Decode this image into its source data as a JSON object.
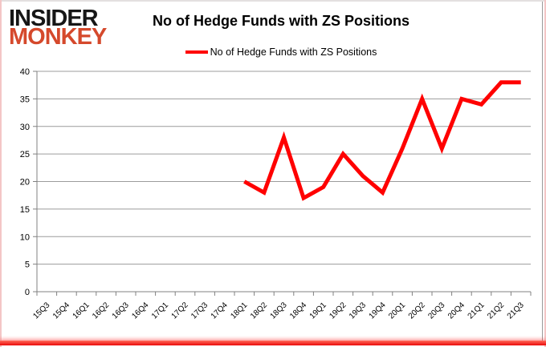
{
  "logo": {
    "line1": "INSIDER",
    "line2": "MONKEY"
  },
  "header": {
    "title": "No of Hedge Funds with ZS Positions"
  },
  "legend": {
    "label": "No of Hedge Funds with ZS Positions",
    "swatch_color": "#ff0000"
  },
  "colors": {
    "line": "#ff0000",
    "grid": "#9c9c9c",
    "axis": "#808080",
    "tick_label": "#000000",
    "logo_black": "#161616",
    "logo_red": "#d5492c",
    "bottom_bar_red": "#ea0b0b",
    "frame_pink": "#f4c6c6"
  },
  "chart_data": {
    "type": "line",
    "title": "No of Hedge Funds with ZS Positions",
    "xlabel": "",
    "ylabel": "",
    "ylim": [
      0,
      40
    ],
    "ytick_step": 5,
    "grid": true,
    "legend_position": "top-center",
    "categories": [
      "15Q3",
      "15Q4",
      "16Q1",
      "16Q2",
      "16Q3",
      "16Q4",
      "17Q1",
      "17Q2",
      "17Q3",
      "17Q4",
      "18Q1",
      "18Q2",
      "18Q3",
      "18Q4",
      "19Q1",
      "19Q2",
      "19Q3",
      "19Q4",
      "20Q1",
      "20Q2",
      "20Q3",
      "20Q4",
      "21Q1",
      "21Q2",
      "21Q3"
    ],
    "series": [
      {
        "name": "No of Hedge Funds with ZS Positions",
        "color": "#ff0000",
        "values": [
          null,
          null,
          null,
          null,
          null,
          null,
          null,
          null,
          null,
          null,
          20,
          18,
          28,
          17,
          19,
          25,
          21,
          18,
          26,
          35,
          26,
          35,
          34,
          38,
          38
        ]
      }
    ]
  }
}
